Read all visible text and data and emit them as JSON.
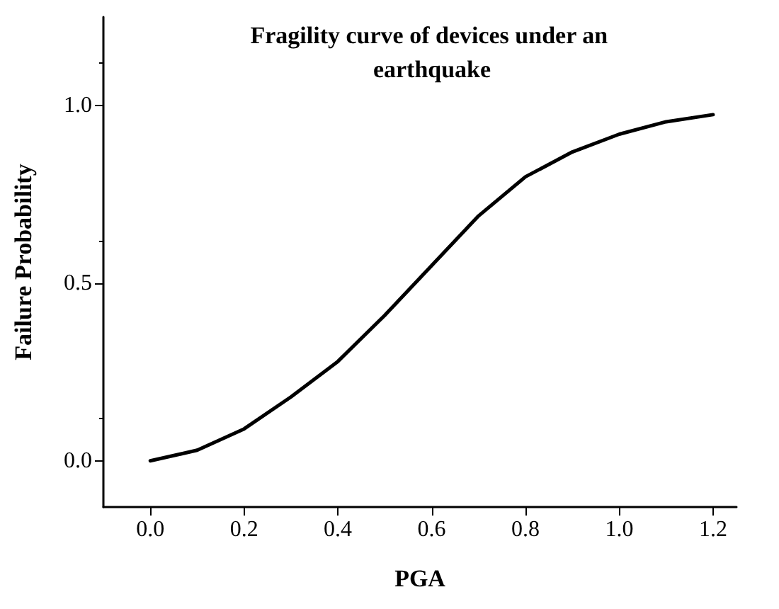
{
  "chart_data": {
    "type": "line",
    "title": "Fragility curve of devices under an earthquake",
    "xlabel": "PGA",
    "ylabel": "Failure Probability",
    "x": [
      0,
      0.1,
      0.2,
      0.3,
      0.4,
      0.5,
      0.6,
      0.7,
      0.8,
      0.9,
      1.0,
      1.1,
      1.2
    ],
    "series": [
      {
        "color": "#000000",
        "values": [
          0,
          0.03,
          0.09,
          0.18,
          0.28,
          0.41,
          0.55,
          0.69,
          0.8,
          0.87,
          0.92,
          0.955,
          0.975
        ]
      }
    ],
    "xlim": [
      -0.1,
      1.25
    ],
    "ylim": [
      -0.13,
      1.25
    ],
    "xticks": [
      {
        "value": 0,
        "label": "0.0"
      },
      {
        "value": 0.2,
        "label": "0.2"
      },
      {
        "value": 0.4,
        "label": "0.4"
      },
      {
        "value": 0.6,
        "label": "0.6"
      },
      {
        "value": 0.8,
        "label": "0.8"
      },
      {
        "value": 1.0,
        "label": "1.0"
      },
      {
        "value": 1.2,
        "label": "1.2"
      }
    ],
    "yticks": [
      {
        "value": 0,
        "label": "0.0"
      },
      {
        "value": 0.5,
        "label": "0.5"
      },
      {
        "value": 1.0,
        "label": "1.0"
      }
    ],
    "grid": false,
    "marker": "none",
    "line_style": "solid"
  }
}
